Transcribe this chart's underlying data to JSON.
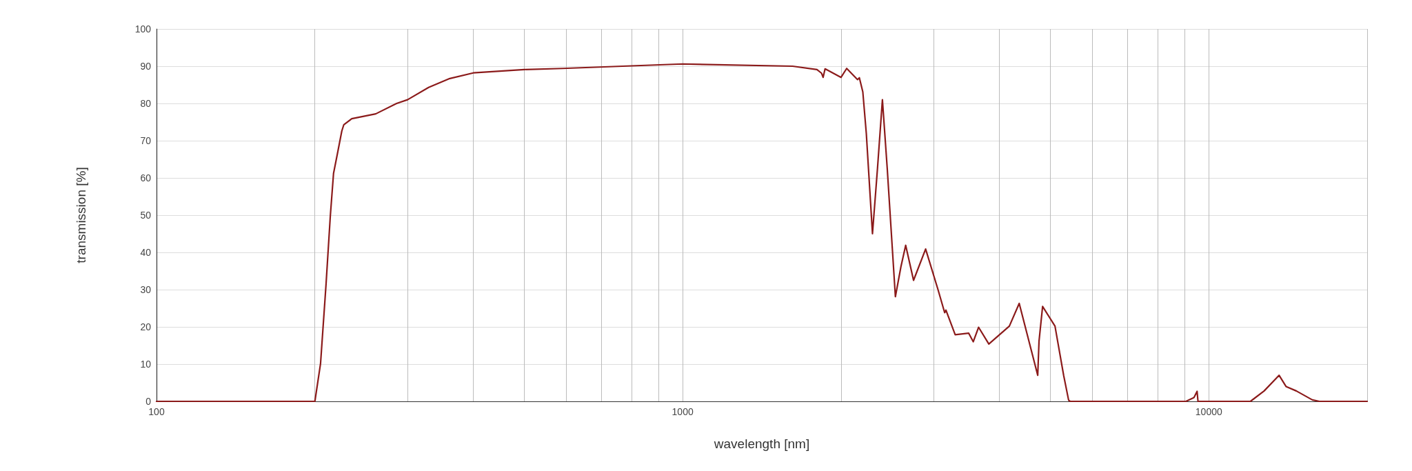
{
  "chart_data": {
    "type": "line",
    "xlabel": "wavelength [nm]",
    "ylabel": "transmission [%]",
    "log": "x",
    "grid": true,
    "marker": "none",
    "line_style": "solid",
    "xlim": [
      100,
      20000
    ],
    "xticks": [
      100,
      {
        "value": 200,
        "label": null
      },
      {
        "value": 300,
        "label": null
      },
      {
        "value": 400,
        "label": null
      },
      {
        "value": 500,
        "label": null
      },
      {
        "value": 600,
        "label": null
      },
      {
        "value": 700,
        "label": null
      },
      {
        "value": 800,
        "label": null
      },
      {
        "value": 900,
        "label": null
      },
      1000,
      {
        "value": 2000,
        "label": null
      },
      {
        "value": 3000,
        "label": null
      },
      {
        "value": 4000,
        "label": null
      },
      {
        "value": 5000,
        "label": null
      },
      {
        "value": 6000,
        "label": null
      },
      {
        "value": 7000,
        "label": null
      },
      {
        "value": 8000,
        "label": null
      },
      {
        "value": 9000,
        "label": null
      },
      10000,
      {
        "value": 20000,
        "label": null
      }
    ],
    "ylim": [
      0,
      100
    ],
    "yticks": [
      0,
      10,
      20,
      30,
      40,
      50,
      60,
      70,
      80,
      90,
      100
    ],
    "series": [
      {
        "color": "#8b1a1a",
        "x": [
          100,
          200,
          205,
          210,
          214,
          217,
          221,
          225,
          227,
          235,
          261,
          286,
          300,
          329,
          361,
          400,
          500,
          591,
          1000,
          1618,
          1800,
          1837,
          1849,
          1865,
          2000,
          2050,
          2150,
          2167,
          2200,
          2234,
          2295,
          2346,
          2397,
          2448,
          2537,
          2599,
          2654,
          2747,
          2896,
          3056,
          3148,
          3165,
          3296,
          3497,
          3567,
          3651,
          3819,
          4178,
          4362,
          4730,
          4757,
          4832,
          5101,
          5298,
          5415,
          5450,
          9050,
          9371,
          9500,
          9538,
          12000,
          12741,
          13600,
          14020,
          14664,
          15733,
          16220,
          20000
        ],
        "values": [
          0,
          0,
          10.1,
          31.4,
          49.9,
          61.2,
          66.9,
          72.6,
          74.3,
          75.9,
          77.2,
          80,
          81,
          84.3,
          86.7,
          88.2,
          89.1,
          89.4,
          90.6,
          90,
          89.1,
          88.1,
          87,
          89.3,
          87,
          89.4,
          86.4,
          86.9,
          83.1,
          71.9,
          45,
          62.6,
          81,
          62.6,
          28.1,
          36.1,
          41.9,
          32.5,
          40.9,
          30.1,
          23.8,
          24.5,
          17.9,
          18.3,
          16,
          19.9,
          15.4,
          20.2,
          26.3,
          7,
          16.2,
          25.5,
          20.2,
          7,
          0.3,
          0,
          0,
          1,
          2.7,
          0,
          0,
          2.8,
          7,
          4,
          2.8,
          0.4,
          0,
          0
        ]
      }
    ]
  }
}
